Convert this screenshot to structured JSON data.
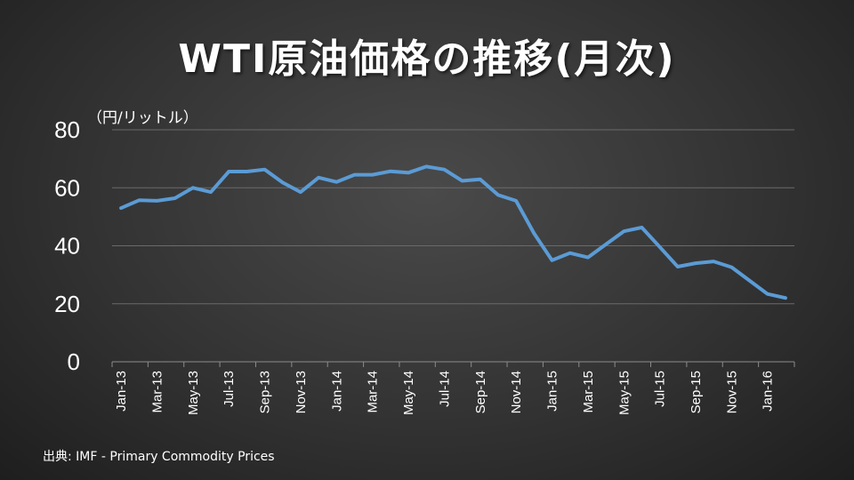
{
  "slide": {
    "title": "WTI原油価格の推移(月次)",
    "unit_label": "（円/リットル）",
    "source": "出典: IMF - Primary Commodity Prices"
  },
  "chart_data": {
    "type": "line",
    "title": "WTI原油価格の推移(月次)",
    "xlabel": "",
    "ylabel": "（円/リットル）",
    "ylim": [
      0,
      80
    ],
    "yticks": [
      0,
      20,
      40,
      60,
      80
    ],
    "grid": true,
    "legend": "none",
    "line_color": "#5b9bd5",
    "x": [
      "Jan-13",
      "Feb-13",
      "Mar-13",
      "Apr-13",
      "May-13",
      "Jun-13",
      "Jul-13",
      "Aug-13",
      "Sep-13",
      "Oct-13",
      "Nov-13",
      "Dec-13",
      "Jan-14",
      "Feb-14",
      "Mar-14",
      "Apr-14",
      "May-14",
      "Jun-14",
      "Jul-14",
      "Aug-14",
      "Sep-14",
      "Oct-14",
      "Nov-14",
      "Dec-14",
      "Jan-15",
      "Feb-15",
      "Mar-15",
      "Apr-15",
      "May-15",
      "Jun-15",
      "Jul-15",
      "Aug-15",
      "Sep-15",
      "Oct-15",
      "Nov-15",
      "Dec-15",
      "Jan-16",
      "Feb-16"
    ],
    "x_tick_labels": [
      "Jan-13",
      "Mar-13",
      "May-13",
      "Jul-13",
      "Sep-13",
      "Nov-13",
      "Jan-14",
      "Mar-14",
      "May-14",
      "Jul-14",
      "Sep-14",
      "Nov-14",
      "Jan-15",
      "Mar-15",
      "May-15",
      "Jul-15",
      "Sep-15",
      "Nov-15",
      "Jan-16"
    ],
    "series": [
      {
        "values": [
          53.0,
          55.7,
          55.5,
          56.4,
          60.0,
          58.5,
          65.6,
          65.6,
          66.3,
          61.8,
          58.5,
          63.5,
          62.0,
          64.5,
          64.5,
          65.7,
          65.2,
          67.3,
          66.3,
          62.4,
          62.9,
          57.5,
          55.5,
          44.3,
          35.0,
          37.5,
          36.0,
          40.5,
          45.0,
          46.3,
          39.6,
          32.8,
          34.0,
          34.6,
          32.6,
          28.0,
          23.4,
          22.0
        ]
      }
    ]
  }
}
